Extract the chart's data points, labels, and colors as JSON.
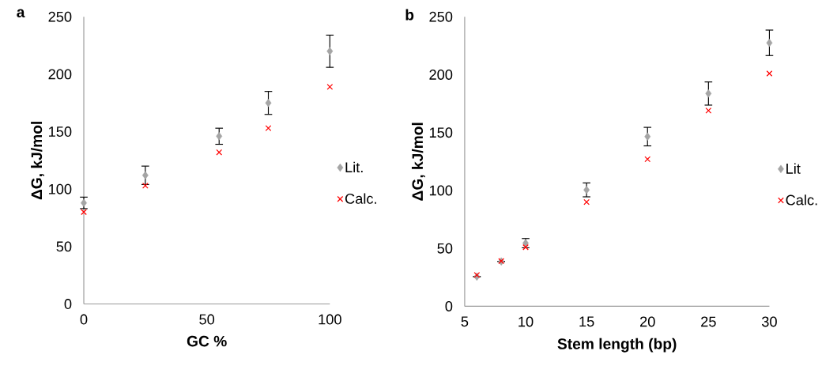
{
  "chart_data": [
    {
      "type": "scatter",
      "title": "a",
      "xlabel": "GC %",
      "ylabel": "ΔG, kJ/mol",
      "xlim": [
        0,
        100
      ],
      "xticks": [
        0,
        50,
        100
      ],
      "ylim": [
        0,
        250
      ],
      "yticks": [
        0,
        50,
        100,
        150,
        200,
        250
      ],
      "legend": "right",
      "grid": false,
      "series": [
        {
          "name": "Lit.",
          "color": "#a5a5a5",
          "marker": "diamond",
          "x": [
            0,
            25,
            55,
            75,
            100
          ],
          "values": [
            88,
            112,
            146,
            175,
            220
          ],
          "errors": [
            5,
            8,
            7,
            10,
            14
          ]
        },
        {
          "name": "Calc.",
          "color": "#ff0000",
          "marker": "cross",
          "x": [
            0,
            25,
            55,
            75,
            100
          ],
          "values": [
            80,
            103,
            132,
            153,
            189
          ]
        }
      ]
    },
    {
      "type": "scatter",
      "title": "b",
      "xlabel": "Stem length (bp)",
      "ylabel": "ΔG, kJ/mol",
      "xlim": [
        5,
        30
      ],
      "xticks": [
        5,
        10,
        15,
        20,
        25,
        30
      ],
      "ylim": [
        0,
        250
      ],
      "yticks": [
        0,
        50,
        100,
        150,
        200,
        250
      ],
      "legend": "right",
      "grid": false,
      "series": [
        {
          "name": "Lit",
          "color": "#a5a5a5",
          "marker": "diamond",
          "x": [
            6,
            8,
            10,
            15,
            20,
            25,
            30
          ],
          "values": [
            25.6,
            38.7,
            54.5,
            100.5,
            146.5,
            183.7,
            227.5
          ],
          "errors": [
            null,
            null,
            4,
            6,
            8,
            10,
            11
          ]
        },
        {
          "name": "Calc.",
          "color": "#ff0000",
          "marker": "cross",
          "x": [
            6,
            8,
            10,
            15,
            20,
            25,
            30
          ],
          "values": [
            27,
            39,
            51,
            90,
            127,
            169,
            201
          ]
        }
      ]
    }
  ]
}
